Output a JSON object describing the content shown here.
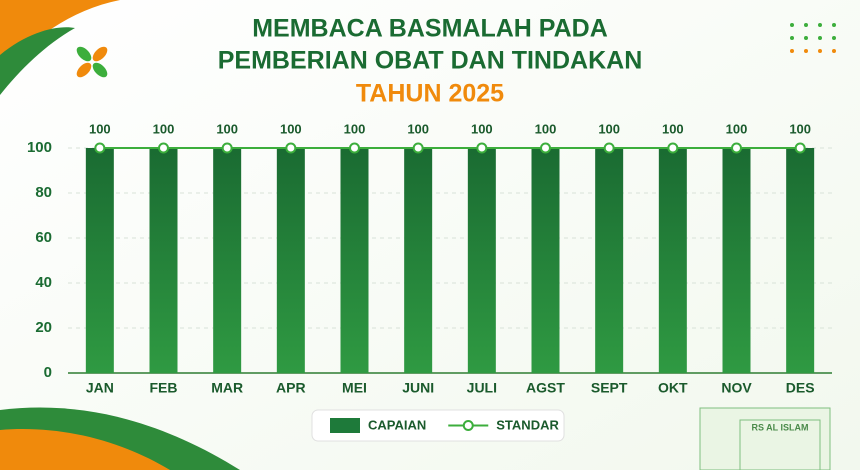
{
  "chart_data": {
    "type": "bar",
    "title": [
      "MEMBACA BASMALAH PADA",
      "PEMBERIAN OBAT DAN TINDAKAN"
    ],
    "subtitle": "TAHUN 2025",
    "categories": [
      "JAN",
      "FEB",
      "MAR",
      "APR",
      "MEI",
      "JUNI",
      "JULI",
      "AGST",
      "SEPT",
      "OKT",
      "NOV",
      "DES"
    ],
    "series": [
      {
        "name": "CAPAIAN",
        "type": "bar",
        "color": "#1e7a3a",
        "values": [
          100,
          100,
          100,
          100,
          100,
          100,
          100,
          100,
          100,
          100,
          100,
          100
        ]
      },
      {
        "name": "STANDAR",
        "type": "line",
        "color": "#3cae3c",
        "values": [
          100,
          100,
          100,
          100,
          100,
          100,
          100,
          100,
          100,
          100,
          100,
          100
        ]
      }
    ],
    "ylim": [
      0,
      100
    ],
    "yticks": [
      0,
      20,
      40,
      60,
      80,
      100
    ],
    "grid": true,
    "legend": "bottom"
  },
  "decor": {
    "building_label": "RS AL ISLAM"
  }
}
